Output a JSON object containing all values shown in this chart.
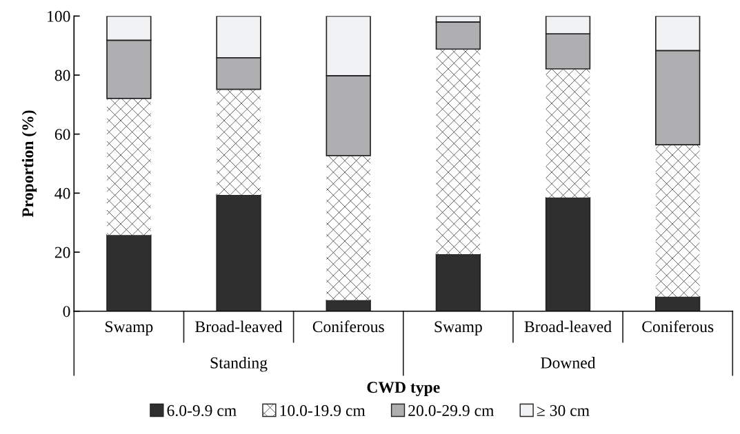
{
  "chart_data": {
    "type": "bar",
    "stacked": true,
    "xlabel": "CWD type",
    "ylabel": "Proportion (%)",
    "categories": [
      "Swamp",
      "Broad-leaved",
      "Coniferous",
      "Swamp",
      "Broad-leaved",
      "Coniferous"
    ],
    "annotations": [
      "Standing",
      "Downed"
    ],
    "series": [
      {
        "name": "6.0-9.9 cm",
        "color": "#2f2f2f",
        "values": [
          25.8,
          39.4,
          3.7,
          19.3,
          38.5,
          4.9
        ]
      },
      {
        "name": "10.0-19.9 cm",
        "color": "#ffffff",
        "values": [
          46.3,
          35.8,
          49.0,
          69.5,
          43.6,
          51.5
        ]
      },
      {
        "name": "20.0-29.9 cm",
        "color": "#afafb1",
        "values": [
          19.7,
          10.7,
          27.1,
          9.2,
          11.9,
          31.9
        ]
      },
      {
        "name": "≥ 30 cm",
        "color": "#f1f2f3",
        "values": [
          8.2,
          14.1,
          20.2,
          2.0,
          6.0,
          11.7
        ]
      }
    ],
    "ylim": [
      0,
      100
    ],
    "yticks": [
      0,
      20,
      40,
      60,
      80,
      100
    ],
    "grid": false,
    "legend": "bottom"
  }
}
